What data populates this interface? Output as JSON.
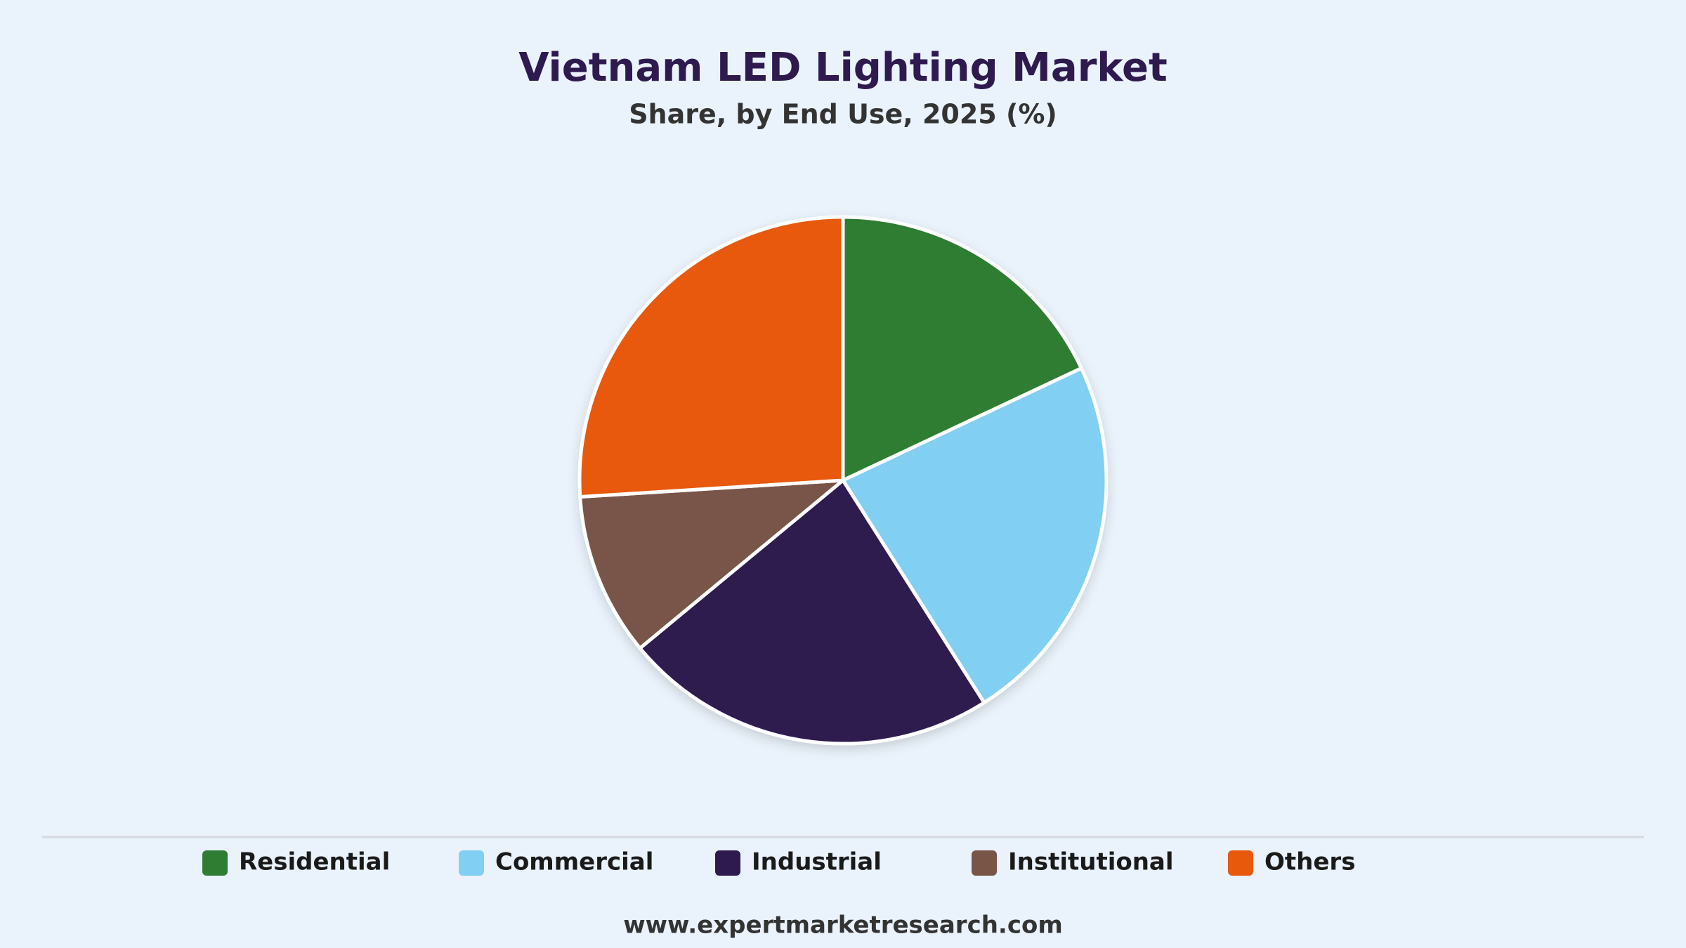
{
  "chart_data": {
    "type": "pie",
    "title": "Vietnam LED Lighting Market",
    "subtitle": "Share, by End Use, 2025 (%)",
    "categories": [
      "Residential",
      "Commercial",
      "Industrial",
      "Institutional",
      "Others"
    ],
    "values": [
      18,
      23,
      23,
      10,
      26
    ],
    "colors": [
      "#2e7d32",
      "#81cff2",
      "#2e1a4f",
      "#795548",
      "#e8590c"
    ],
    "source": "www.expertmarketresearch.com"
  }
}
